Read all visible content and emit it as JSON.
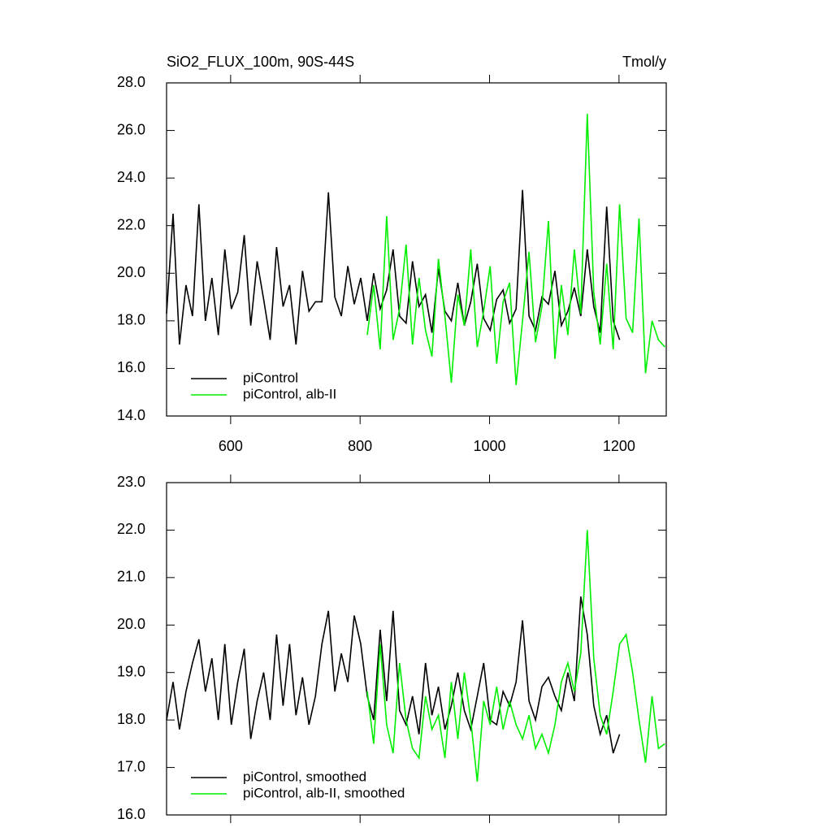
{
  "chart_data": [
    {
      "type": "line",
      "title": "SiO2_FLUX_100m, 90S-44S",
      "units": "Tmol/y",
      "x": [
        501,
        511,
        521,
        531,
        541,
        551,
        561,
        571,
        581,
        591,
        601,
        611,
        621,
        631,
        641,
        651,
        661,
        671,
        681,
        691,
        701,
        711,
        721,
        731,
        741,
        751,
        761,
        771,
        781,
        791,
        801,
        811,
        821,
        831,
        841,
        851,
        861,
        871,
        881,
        891,
        901,
        911,
        921,
        931,
        941,
        951,
        961,
        971,
        981,
        991,
        1001,
        1011,
        1021,
        1031,
        1041,
        1051,
        1061,
        1071,
        1081,
        1091,
        1101,
        1111,
        1121,
        1131,
        1141,
        1151,
        1161,
        1171,
        1181,
        1191,
        1201,
        1211,
        1221,
        1231,
        1241,
        1251,
        1261,
        1271
      ],
      "series": [
        {
          "name": "piControl",
          "color": "#000000",
          "values": [
            18.3,
            22.5,
            17.0,
            19.5,
            18.2,
            22.9,
            18.0,
            19.8,
            17.4,
            21.0,
            18.5,
            19.2,
            21.6,
            17.8,
            20.5,
            18.9,
            17.2,
            21.1,
            18.6,
            19.5,
            17.0,
            20.1,
            18.4,
            18.8,
            18.8,
            23.4,
            19.0,
            18.2,
            20.3,
            18.7,
            19.8,
            18.0,
            20.0,
            18.5,
            19.3,
            21.0,
            18.2,
            17.9,
            20.5,
            18.6,
            19.1,
            17.5,
            20.2,
            18.4,
            18.0,
            19.6,
            17.8,
            18.8,
            20.4,
            18.1,
            17.6,
            18.9,
            19.3,
            17.9,
            18.5,
            23.5,
            18.2,
            17.6,
            19.0,
            18.7,
            20.1,
            17.8,
            18.4,
            19.4,
            18.2,
            21.0,
            18.6,
            17.5,
            22.8,
            18.0,
            17.2,
            null,
            null,
            null,
            null,
            null,
            null,
            null
          ]
        },
        {
          "name": "piControl, alb-II",
          "color": "#00ee00",
          "values": [
            null,
            null,
            null,
            null,
            null,
            null,
            null,
            null,
            null,
            null,
            null,
            null,
            null,
            null,
            null,
            null,
            null,
            null,
            null,
            null,
            null,
            null,
            null,
            null,
            null,
            null,
            null,
            null,
            null,
            null,
            null,
            17.4,
            19.5,
            16.8,
            22.4,
            17.2,
            18.5,
            21.2,
            17.0,
            19.8,
            17.6,
            16.5,
            20.6,
            18.2,
            15.4,
            19.1,
            17.8,
            21.0,
            16.9,
            18.4,
            20.3,
            16.2,
            18.8,
            19.6,
            15.3,
            18.0,
            20.9,
            17.1,
            18.6,
            22.2,
            16.4,
            19.5,
            17.4,
            21.0,
            18.3,
            26.7,
            19.2,
            17.0,
            20.4,
            16.8,
            22.9,
            18.1,
            17.5,
            22.3,
            15.8,
            18.0,
            17.2,
            16.9
          ]
        }
      ],
      "xlim": [
        501,
        1273
      ],
      "xticks": [
        600,
        800,
        1000,
        1200
      ],
      "ylim": [
        14,
        28
      ],
      "yticks": [
        {
          "value": 14,
          "label": "14.0"
        },
        {
          "value": 16,
          "label": "16.0"
        },
        {
          "value": 18,
          "label": "18.0"
        },
        {
          "value": 20,
          "label": "20.0"
        },
        {
          "value": 22,
          "label": "22.0"
        },
        {
          "value": 24,
          "label": "24.0"
        },
        {
          "value": 26,
          "label": "26.0"
        },
        {
          "value": 28,
          "label": "28.0"
        }
      ],
      "legend": "lower left"
    },
    {
      "type": "line",
      "x": [
        501,
        511,
        521,
        531,
        541,
        551,
        561,
        571,
        581,
        591,
        601,
        611,
        621,
        631,
        641,
        651,
        661,
        671,
        681,
        691,
        701,
        711,
        721,
        731,
        741,
        751,
        761,
        771,
        781,
        791,
        801,
        811,
        821,
        831,
        841,
        851,
        861,
        871,
        881,
        891,
        901,
        911,
        921,
        931,
        941,
        951,
        961,
        971,
        981,
        991,
        1001,
        1011,
        1021,
        1031,
        1041,
        1051,
        1061,
        1071,
        1081,
        1091,
        1101,
        1111,
        1121,
        1131,
        1141,
        1151,
        1161,
        1171,
        1181,
        1191,
        1201,
        1211,
        1221,
        1231,
        1241,
        1251,
        1261,
        1271
      ],
      "series": [
        {
          "name": "piControl, smoothed",
          "color": "#000000",
          "values": [
            18.0,
            18.8,
            17.8,
            18.6,
            19.2,
            19.7,
            18.6,
            19.3,
            18.0,
            19.6,
            17.9,
            18.8,
            19.5,
            17.6,
            18.4,
            19.0,
            18.0,
            19.8,
            18.3,
            19.6,
            18.1,
            18.9,
            17.9,
            18.5,
            19.6,
            20.3,
            18.6,
            19.4,
            18.8,
            20.2,
            19.6,
            18.5,
            18.0,
            19.9,
            18.4,
            20.3,
            18.2,
            17.9,
            18.5,
            17.7,
            19.2,
            18.1,
            18.7,
            17.8,
            18.3,
            19.0,
            18.2,
            17.8,
            18.5,
            19.2,
            18.0,
            17.9,
            18.6,
            18.3,
            18.8,
            20.1,
            18.4,
            18.0,
            18.7,
            18.9,
            18.5,
            18.2,
            19.0,
            18.4,
            20.6,
            19.8,
            18.3,
            17.7,
            18.1,
            17.3,
            17.7,
            null,
            null,
            null,
            null,
            null,
            null,
            null
          ]
        },
        {
          "name": "piControl, alb-II, smoothed",
          "color": "#00ee00",
          "values": [
            null,
            null,
            null,
            null,
            null,
            null,
            null,
            null,
            null,
            null,
            null,
            null,
            null,
            null,
            null,
            null,
            null,
            null,
            null,
            null,
            null,
            null,
            null,
            null,
            null,
            null,
            null,
            null,
            null,
            null,
            null,
            18.6,
            17.5,
            19.6,
            17.9,
            17.3,
            19.2,
            18.0,
            17.4,
            17.2,
            18.5,
            17.8,
            18.1,
            17.2,
            18.8,
            17.6,
            19.0,
            18.0,
            16.7,
            18.4,
            17.9,
            18.7,
            17.8,
            18.4,
            17.9,
            17.6,
            18.1,
            17.4,
            17.7,
            17.3,
            17.9,
            18.8,
            19.2,
            18.6,
            19.4,
            22.0,
            19.3,
            18.1,
            17.7,
            18.6,
            19.6,
            19.8,
            19.0,
            18.0,
            17.1,
            18.5,
            17.4,
            17.5
          ]
        }
      ],
      "xlim": [
        501,
        1273
      ],
      "xticks": [
        600,
        800,
        1000,
        1200
      ],
      "ylim": [
        16,
        23
      ],
      "yticks": [
        {
          "value": 16,
          "label": "16.0"
        },
        {
          "value": 17,
          "label": "17.0"
        },
        {
          "value": 18,
          "label": "18.0"
        },
        {
          "value": 19,
          "label": "19.0"
        },
        {
          "value": 20,
          "label": "20.0"
        },
        {
          "value": 21,
          "label": "21.0"
        },
        {
          "value": 22,
          "label": "22.0"
        },
        {
          "value": 23,
          "label": "23.0"
        }
      ],
      "legend": "lower left"
    }
  ]
}
